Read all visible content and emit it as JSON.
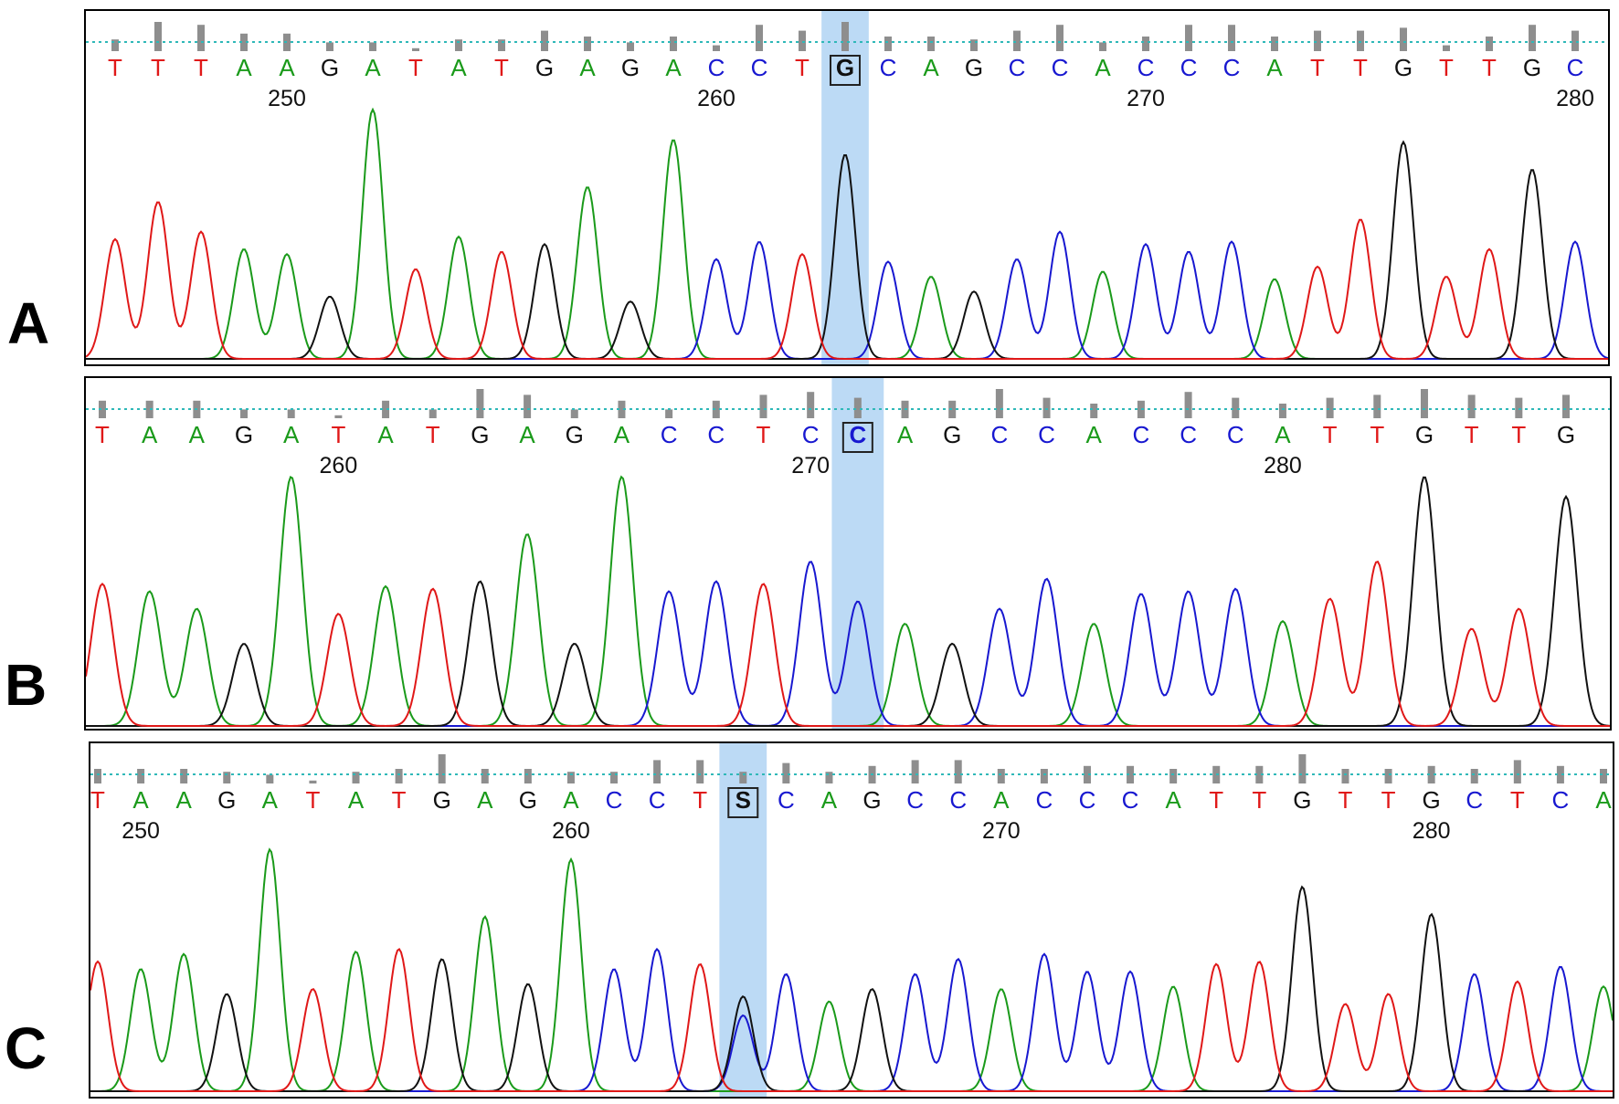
{
  "colors": {
    "A": "#1a9a1a",
    "C": "#1818d0",
    "G": "#111111",
    "T": "#e01818",
    "S": "#111111",
    "highlight": "#a6cdf2",
    "qualityBar": "#8e8e8e",
    "baseline": "#2fb8b8"
  },
  "chart_data": [
    {
      "type": "line",
      "panel_label": "A",
      "title": "",
      "xlabel": "",
      "ylabel": "",
      "bases": [
        "T",
        "T",
        "T",
        "A",
        "A",
        "G",
        "A",
        "T",
        "A",
        "T",
        "G",
        "A",
        "G",
        "A",
        "C",
        "C",
        "T",
        "G",
        "C",
        "A",
        "G",
        "C",
        "C",
        "A",
        "C",
        "C",
        "C",
        "A",
        "T",
        "T",
        "G",
        "T",
        "T",
        "G",
        "C"
      ],
      "position_labels": [
        {
          "base_index": 4,
          "text": "250"
        },
        {
          "base_index": 14,
          "text": "260"
        },
        {
          "base_index": 24,
          "text": "270"
        },
        {
          "base_index": 34,
          "text": "280"
        }
      ],
      "highlight_index": 17,
      "peak_heights": [
        0.48,
        0.63,
        0.51,
        0.44,
        0.42,
        0.25,
        1.0,
        0.36,
        0.49,
        0.43,
        0.46,
        0.69,
        0.23,
        0.88,
        0.4,
        0.47,
        0.42,
        0.82,
        0.39,
        0.33,
        0.27,
        0.4,
        0.51,
        0.35,
        0.46,
        0.43,
        0.47,
        0.32,
        0.37,
        0.56,
        0.87,
        0.33,
        0.44,
        0.76,
        0.47
      ],
      "quality": [
        0.4,
        1.0,
        0.9,
        0.6,
        0.6,
        0.3,
        0.3,
        0.1,
        0.4,
        0.4,
        0.7,
        0.5,
        0.3,
        0.5,
        0.2,
        0.9,
        0.7,
        1.0,
        0.5,
        0.5,
        0.4,
        0.7,
        0.9,
        0.3,
        0.5,
        0.9,
        0.9,
        0.5,
        0.7,
        0.7,
        0.8,
        0.2,
        0.5,
        0.9,
        0.7
      ]
    },
    {
      "type": "line",
      "panel_label": "B",
      "title": "",
      "xlabel": "",
      "ylabel": "",
      "bases": [
        "T",
        "A",
        "A",
        "G",
        "A",
        "T",
        "A",
        "T",
        "G",
        "A",
        "G",
        "A",
        "C",
        "C",
        "T",
        "C",
        "C",
        "A",
        "G",
        "C",
        "C",
        "A",
        "C",
        "C",
        "C",
        "A",
        "T",
        "T",
        "G",
        "T",
        "T",
        "G"
      ],
      "position_labels": [
        {
          "base_index": 5,
          "text": "260"
        },
        {
          "base_index": 15,
          "text": "270"
        },
        {
          "base_index": 25,
          "text": "280"
        }
      ],
      "highlight_index": 16,
      "peak_heights": [
        0.57,
        0.54,
        0.47,
        0.33,
        1.0,
        0.45,
        0.56,
        0.55,
        0.58,
        0.77,
        0.33,
        1.0,
        0.54,
        0.58,
        0.57,
        0.66,
        0.5,
        0.41,
        0.33,
        0.47,
        0.59,
        0.41,
        0.53,
        0.54,
        0.55,
        0.42,
        0.51,
        0.66,
        1.0,
        0.39,
        0.47,
        0.92
      ],
      "quality": [
        0.6,
        0.6,
        0.6,
        0.3,
        0.3,
        0.1,
        0.6,
        0.3,
        1.0,
        0.8,
        0.3,
        0.6,
        0.3,
        0.6,
        0.8,
        0.9,
        0.7,
        0.6,
        0.6,
        1.0,
        0.7,
        0.5,
        0.6,
        0.9,
        0.7,
        0.5,
        0.7,
        0.8,
        1.0,
        0.8,
        0.7,
        0.8
      ]
    },
    {
      "type": "line",
      "panel_label": "C",
      "title": "",
      "xlabel": "",
      "ylabel": "",
      "bases": [
        "T",
        "A",
        "A",
        "G",
        "A",
        "T",
        "A",
        "T",
        "G",
        "A",
        "G",
        "A",
        "C",
        "C",
        "T",
        "S",
        "C",
        "A",
        "G",
        "C",
        "C",
        "A",
        "C",
        "C",
        "C",
        "A",
        "T",
        "T",
        "G",
        "T",
        "T",
        "G",
        "C",
        "T",
        "C",
        "A"
      ],
      "position_labels": [
        {
          "base_index": 1,
          "text": "250"
        },
        {
          "base_index": 11,
          "text": "260"
        },
        {
          "base_index": 21,
          "text": "270"
        },
        {
          "base_index": 31,
          "text": "280"
        }
      ],
      "highlight_index": 15,
      "peak_heights": [
        0.52,
        0.49,
        0.55,
        0.39,
        0.97,
        0.41,
        0.56,
        0.57,
        0.53,
        0.7,
        0.43,
        0.93,
        0.49,
        0.57,
        0.51,
        0.38,
        0.47,
        0.36,
        0.41,
        0.47,
        0.53,
        0.41,
        0.55,
        0.48,
        0.48,
        0.42,
        0.51,
        0.52,
        0.82,
        0.35,
        0.39,
        0.71,
        0.47,
        0.44,
        0.5,
        0.42
      ],
      "quality": [
        0.5,
        0.5,
        0.5,
        0.4,
        0.3,
        0.1,
        0.4,
        0.5,
        1.0,
        0.5,
        0.5,
        0.4,
        0.4,
        0.8,
        0.8,
        0.4,
        0.7,
        0.4,
        0.6,
        0.8,
        0.8,
        0.5,
        0.5,
        0.6,
        0.6,
        0.5,
        0.6,
        0.6,
        1.0,
        0.5,
        0.5,
        0.6,
        0.5,
        0.8,
        0.6,
        0.5
      ]
    }
  ]
}
